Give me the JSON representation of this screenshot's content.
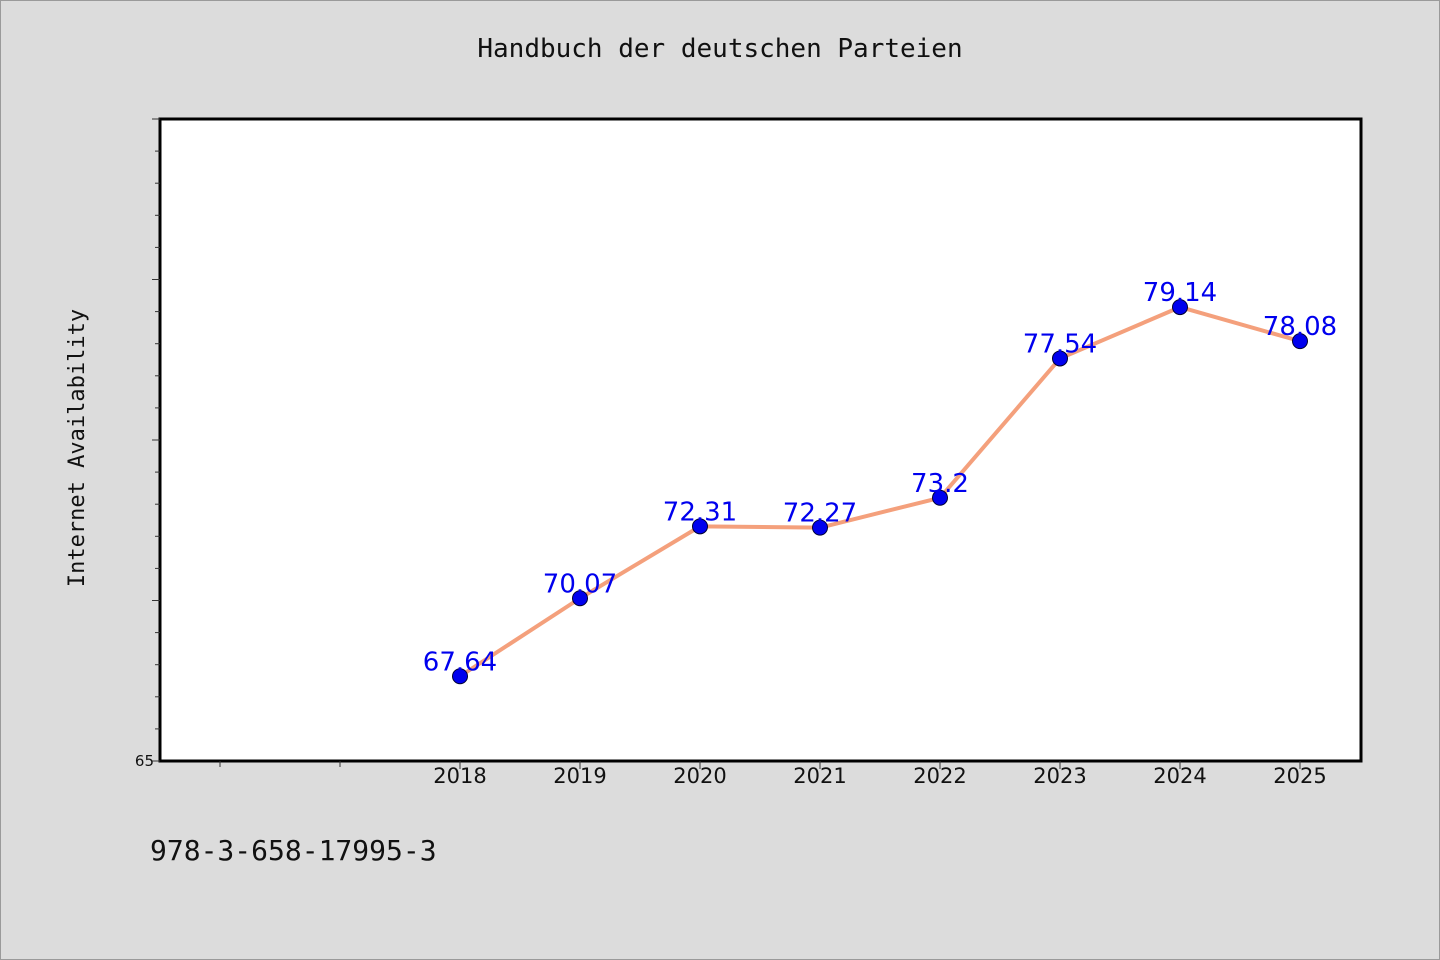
{
  "chart_data": {
    "type": "line",
    "title": "Handbuch der deutschen Parteien",
    "xlabel": "",
    "ylabel": "Internet Availability",
    "categories": [
      "2018",
      "2019",
      "2020",
      "2021",
      "2022",
      "2023",
      "2024",
      "2025"
    ],
    "series": [
      {
        "values": [
          67.64,
          70.07,
          72.31,
          72.27,
          73.2,
          77.54,
          79.14,
          78.08
        ],
        "data_labels": [
          "67.64",
          "70.07",
          "72.31",
          "72.27",
          "73.2",
          "77.54",
          "79.14",
          "78.08"
        ],
        "line_color": "#f4a07c",
        "marker_color": "#0000ee",
        "label_color": "#0000ee"
      }
    ],
    "ylim": [
      65,
      85
    ],
    "y_tick_labels": [
      "65"
    ],
    "grid": false,
    "legend": "none"
  },
  "footer": {
    "code": "978-3-658-17995-3"
  }
}
